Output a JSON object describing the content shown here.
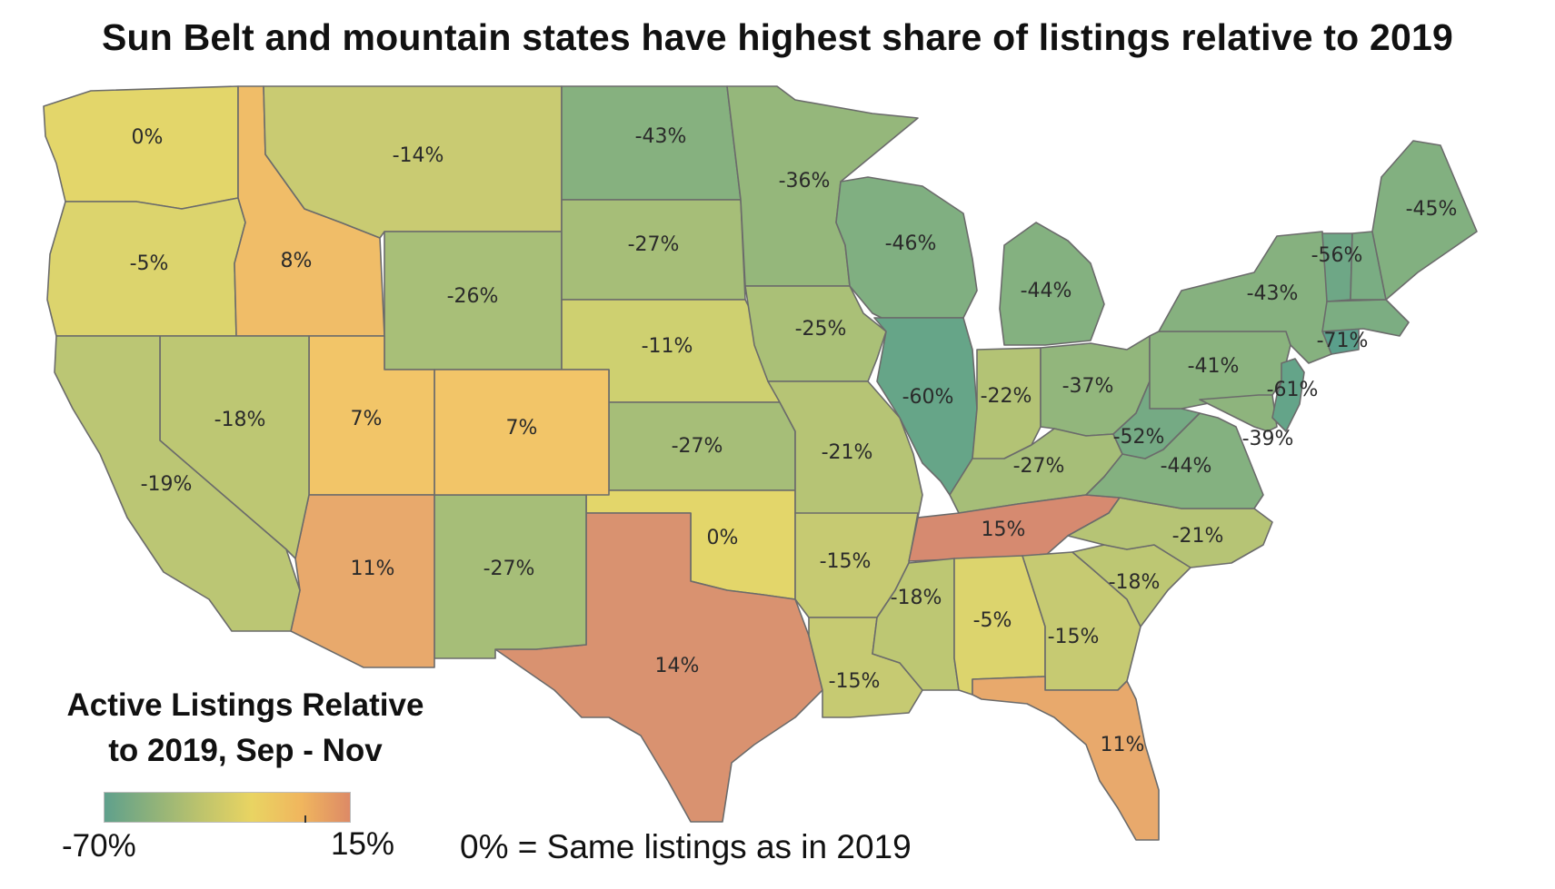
{
  "title": "Sun Belt and mountain states have highest share of listings relative to 2019",
  "legend": {
    "title_line1": "Active Listings Relative",
    "title_line2": "to 2019, Sep - Nov",
    "min_label": "-70%",
    "max_label": "15%",
    "note": "0% = Same listings as in 2019",
    "colors": [
      "#5fa08c",
      "#8fb27a",
      "#bfc46c",
      "#e9d462",
      "#f0b65e",
      "#dd8a66"
    ]
  },
  "states": [
    {
      "code": "WA",
      "label": "0%",
      "color": "#e3d66a"
    },
    {
      "code": "OR",
      "label": "-5%",
      "color": "#dcd46d"
    },
    {
      "code": "ID",
      "label": "8%",
      "color": "#f0bd68"
    },
    {
      "code": "MT",
      "label": "-14%",
      "color": "#c9cb72"
    },
    {
      "code": "WY",
      "label": "-26%",
      "color": "#a8bf78"
    },
    {
      "code": "ND",
      "label": "-43%",
      "color": "#86b17f"
    },
    {
      "code": "SD",
      "label": "-27%",
      "color": "#a6be78"
    },
    {
      "code": "NE",
      "label": "-11%",
      "color": "#ced070"
    },
    {
      "code": "KS",
      "label": "-27%",
      "color": "#a6be78"
    },
    {
      "code": "OK",
      "label": "0%",
      "color": "#e3d66a"
    },
    {
      "code": "TX",
      "label": "14%",
      "color": "#d99270"
    },
    {
      "code": "NM",
      "label": "-27%",
      "color": "#a6be78"
    },
    {
      "code": "CO",
      "label": "7%",
      "color": "#f2c568"
    },
    {
      "code": "UT",
      "label": "7%",
      "color": "#f2c568"
    },
    {
      "code": "AZ",
      "label": "11%",
      "color": "#e8a96c"
    },
    {
      "code": "NV",
      "label": "-18%",
      "color": "#bdc773"
    },
    {
      "code": "CA",
      "label": "-19%",
      "color": "#bbc674"
    },
    {
      "code": "MN",
      "label": "-36%",
      "color": "#95b77b"
    },
    {
      "code": "IA",
      "label": "-25%",
      "color": "#aac077"
    },
    {
      "code": "MO",
      "label": "-21%",
      "color": "#b6c475"
    },
    {
      "code": "AR",
      "label": "-15%",
      "color": "#c6ca72"
    },
    {
      "code": "LA",
      "label": "-15%",
      "color": "#c6ca72"
    },
    {
      "code": "WI",
      "label": "-46%",
      "color": "#80af81"
    },
    {
      "code": "IL",
      "label": "-60%",
      "color": "#66a588"
    },
    {
      "code": "MI",
      "label": "-44%",
      "color": "#84b180"
    },
    {
      "code": "IN",
      "label": "-22%",
      "color": "#b3c375"
    },
    {
      "code": "OH",
      "label": "-37%",
      "color": "#92b67c"
    },
    {
      "code": "KY",
      "label": "-27%",
      "color": "#a6be78"
    },
    {
      "code": "TN",
      "label": "15%",
      "color": "#d68a70"
    },
    {
      "code": "MS",
      "label": "-18%",
      "color": "#bdc773"
    },
    {
      "code": "AL",
      "label": "-5%",
      "color": "#dcd46d"
    },
    {
      "code": "GA",
      "label": "-15%",
      "color": "#c6ca72"
    },
    {
      "code": "FL",
      "label": "11%",
      "color": "#e8a96c"
    },
    {
      "code": "SC",
      "label": "-18%",
      "color": "#bdc773"
    },
    {
      "code": "NC",
      "label": "-21%",
      "color": "#b6c475"
    },
    {
      "code": "VA",
      "label": "-44%",
      "color": "#84b180"
    },
    {
      "code": "WV",
      "label": "-52%",
      "color": "#75aa84"
    },
    {
      "code": "PA",
      "label": "-41%",
      "color": "#8ab37e"
    },
    {
      "code": "NY",
      "label": "-43%",
      "color": "#86b17f"
    },
    {
      "code": "MD",
      "label": "-39%",
      "color": "#8eb47d"
    },
    {
      "code": "NJ",
      "label": "-61%",
      "color": "#64a489"
    },
    {
      "code": "CT",
      "label": "-71%",
      "color": "#5a9f8b"
    },
    {
      "code": "VT",
      "label": "-56%",
      "color": "#6ea786"
    },
    {
      "code": "NH",
      "label": "",
      "color": "#7aad83"
    },
    {
      "code": "MA",
      "label": "",
      "color": "#7cad82"
    },
    {
      "code": "ME",
      "label": "-45%",
      "color": "#82b080"
    }
  ]
}
